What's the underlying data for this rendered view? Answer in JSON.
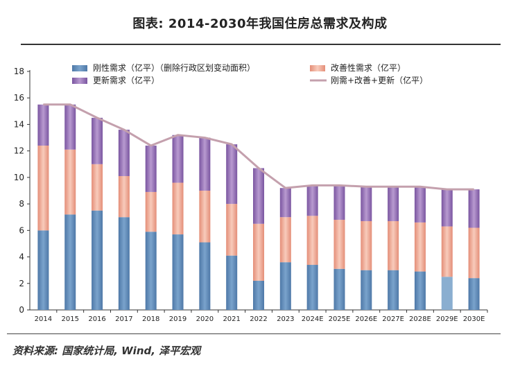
{
  "title": "图表: 2014-2030年我国住房总需求及构成",
  "source": "资料来源: 国家统计局, Wind, 泽平宏观",
  "chart_data": {
    "type": "bar",
    "stacked": true,
    "title": "图表: 2014-2030年我国住房总需求及构成",
    "xlabel": "",
    "ylabel": "",
    "ylim": [
      0,
      18
    ],
    "yticks": [
      0,
      2,
      4,
      6,
      8,
      10,
      12,
      14,
      16,
      18
    ],
    "categories": [
      "2014",
      "2015",
      "2016",
      "2017",
      "2018",
      "2019",
      "2020",
      "2021",
      "2022",
      "2023",
      "2024E",
      "2025E",
      "2026E",
      "2027E",
      "2028E",
      "2029E",
      "2030E"
    ],
    "series": [
      {
        "name": "刚性需求（亿平）（删除行政区划变动面积）",
        "color": "#5b87b5",
        "values": [
          6.0,
          7.2,
          7.5,
          7.0,
          5.9,
          5.7,
          5.1,
          4.1,
          2.2,
          3.6,
          3.4,
          3.1,
          3.0,
          3.0,
          2.9,
          2.5,
          2.4
        ]
      },
      {
        "name": "改善性需求（亿平）",
        "color": "#e9a490",
        "values": [
          6.4,
          4.9,
          3.5,
          3.1,
          3.0,
          3.9,
          3.9,
          3.9,
          4.3,
          3.4,
          3.7,
          3.7,
          3.7,
          3.7,
          3.7,
          3.8,
          3.8
        ]
      },
      {
        "name": "更新需求（亿平）",
        "color": "#8d6aad",
        "values": [
          3.1,
          3.4,
          3.5,
          3.5,
          3.5,
          3.6,
          4.0,
          4.5,
          4.2,
          2.2,
          2.3,
          2.6,
          2.6,
          2.6,
          2.7,
          2.8,
          2.9
        ]
      },
      {
        "name": "刚需+改善+更新（亿平）",
        "type": "line",
        "color": "#c4a0ad",
        "values": [
          15.5,
          15.5,
          14.5,
          13.6,
          12.4,
          13.2,
          13.0,
          12.5,
          10.7,
          9.2,
          9.4,
          9.4,
          9.3,
          9.3,
          9.3,
          9.1,
          9.1
        ]
      }
    ],
    "legend_position": "top",
    "grid": false
  }
}
